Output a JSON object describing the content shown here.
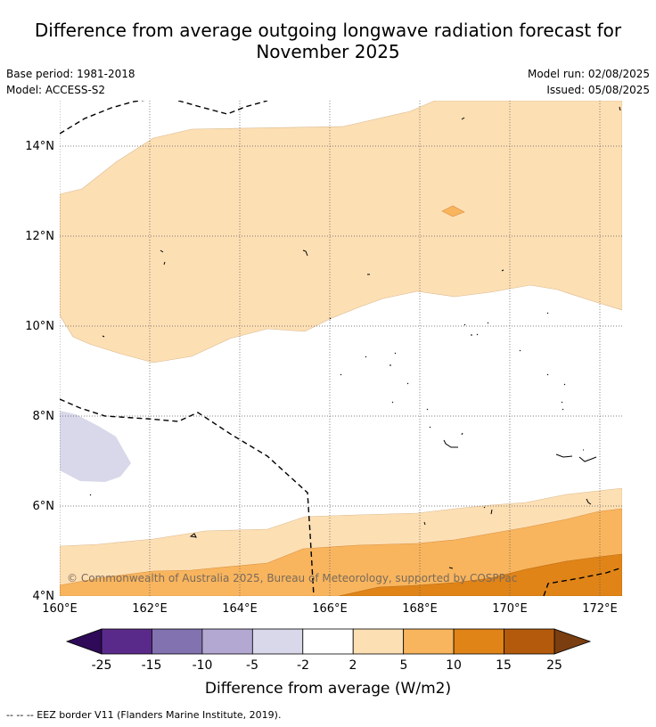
{
  "title": {
    "line1": "Difference from average outgoing longwave radiation forecast for",
    "line2": "November 2025"
  },
  "meta": {
    "base_period": "Base period: 1981-2018",
    "model": "Model: ACCESS-S2",
    "model_run": "Model run: 02/08/2025",
    "issued": "Issued: 05/08/2025"
  },
  "map": {
    "lat_labels": [
      "14°N",
      "12°N",
      "10°N",
      "8°N",
      "6°N",
      "4°N"
    ],
    "lon_labels": [
      "160°E",
      "162°E",
      "164°E",
      "166°E",
      "168°E",
      "170°E",
      "172°E"
    ],
    "copyright": "© Commonwealth of Australia 2025, Bureau of Meteorology, supported by COSPPac"
  },
  "colorbar": {
    "ticks": [
      "-25",
      "-15",
      "-10",
      "-5",
      "-2",
      "2",
      "5",
      "10",
      "15",
      "25"
    ],
    "colors": [
      "#5a2a8a",
      "#8272b0",
      "#b2a8d2",
      "#d8d8ea",
      "#ffffff",
      "#fddfb4",
      "#f8b55e",
      "#e08418",
      "#b45a0c"
    ],
    "under_color": "#2e0a58",
    "over_color": "#7a3e10",
    "label": "Difference from average (W/m2)"
  },
  "footer": {
    "legend": "--  --  -- EEZ border V11 (Flanders Marine Institute, 2019)."
  }
}
